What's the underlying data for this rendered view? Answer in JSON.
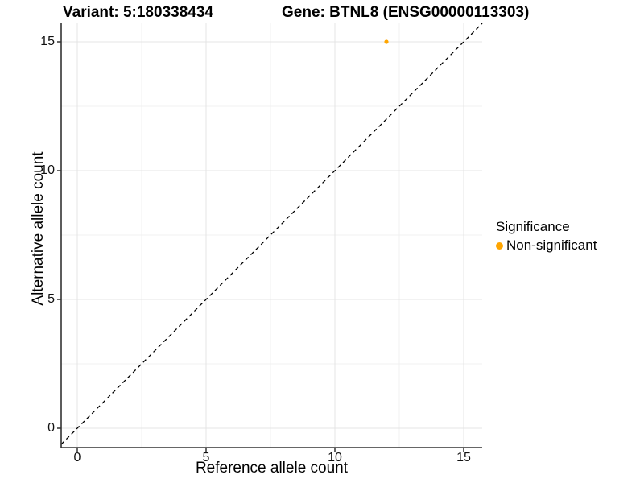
{
  "chart_data": {
    "type": "scatter",
    "title_left": "Variant: 5:180338434",
    "title_right": "Gene: BTNL8 (ENSG00000113303)",
    "xlabel": "Reference allele count",
    "ylabel": "Alternative allele count",
    "x_ticks": [
      0,
      5,
      10,
      15
    ],
    "y_ticks": [
      0,
      5,
      10,
      15
    ],
    "x_minor_ticks": [
      2.5,
      7.5,
      12.5
    ],
    "y_minor_ticks": [
      2.5,
      7.5,
      12.5
    ],
    "xlim": [
      -0.75,
      15.75
    ],
    "ylim": [
      -0.75,
      15.75
    ],
    "grid": true,
    "legend_position": "right",
    "identity_line": {
      "style": "dashed",
      "color": "#000000",
      "from": [
        -0.625,
        -0.625
      ],
      "to": [
        15.72,
        15.72
      ]
    },
    "points": [
      {
        "x": 12,
        "y": 15,
        "series": "Non-significant",
        "color": "#FFA500"
      }
    ],
    "legend": {
      "title": "Significance",
      "items": [
        {
          "label": "Non-significant",
          "color": "#FFA500"
        }
      ]
    },
    "colors": {
      "grid_major": "#e4e4e4",
      "grid_minor": "#f1f1f1",
      "axis_line": "#333333",
      "tick_mark": "#333333",
      "text": "#000000"
    }
  }
}
